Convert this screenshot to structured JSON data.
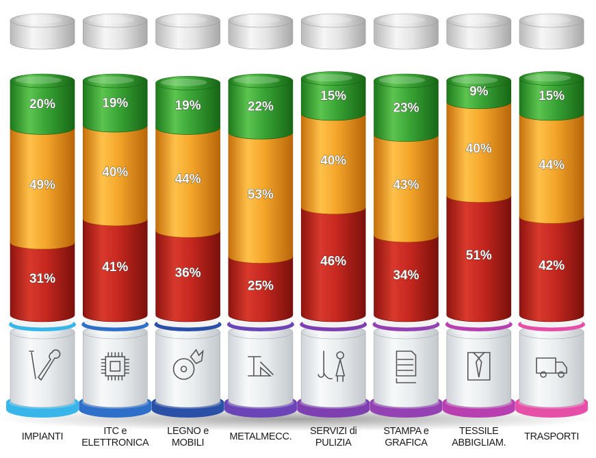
{
  "chart_data": {
    "type": "bar",
    "stacked": true,
    "normalized": true,
    "unit": "%",
    "categories": [
      {
        "lines": [
          "IMPIANTI"
        ],
        "icon": "tools-icon",
        "base_color": "#38b6ea"
      },
      {
        "lines": [
          "ITC e",
          "ELETTRONICA"
        ],
        "icon": "chip-icon",
        "base_color": "#2e6fc9"
      },
      {
        "lines": [
          "LEGNO e",
          "MOBILI"
        ],
        "icon": "saw-blade-icon",
        "base_color": "#2a4fa6"
      },
      {
        "lines": [
          "METALMECC."
        ],
        "icon": "press-machine-icon",
        "base_color": "#6b45b8"
      },
      {
        "lines": [
          "SERVIZI di",
          "PULIZIA"
        ],
        "icon": "cleaning-icon",
        "base_color": "#7e3fb0"
      },
      {
        "lines": [
          "STAMPA e",
          "GRAFICA"
        ],
        "icon": "printer-icon",
        "base_color": "#9442b3"
      },
      {
        "lines": [
          "TESSILE",
          "ABBIGLIAM."
        ],
        "icon": "shirt-tie-icon",
        "base_color": "#b83fb0"
      },
      {
        "lines": [
          "TRASPORTI"
        ],
        "icon": "truck-icon",
        "base_color": "#e64fa8"
      }
    ],
    "series": [
      {
        "color": "#c22a1f",
        "values": [
          31,
          41,
          36,
          25,
          46,
          34,
          51,
          42
        ]
      },
      {
        "color": "#f2a227",
        "values": [
          49,
          40,
          44,
          53,
          40,
          43,
          40,
          44
        ]
      },
      {
        "color": "#3aa536",
        "values": [
          20,
          19,
          19,
          22,
          15,
          23,
          9,
          15
        ]
      }
    ],
    "ylim": [
      0,
      100
    ],
    "legend": "none",
    "grid": false
  }
}
